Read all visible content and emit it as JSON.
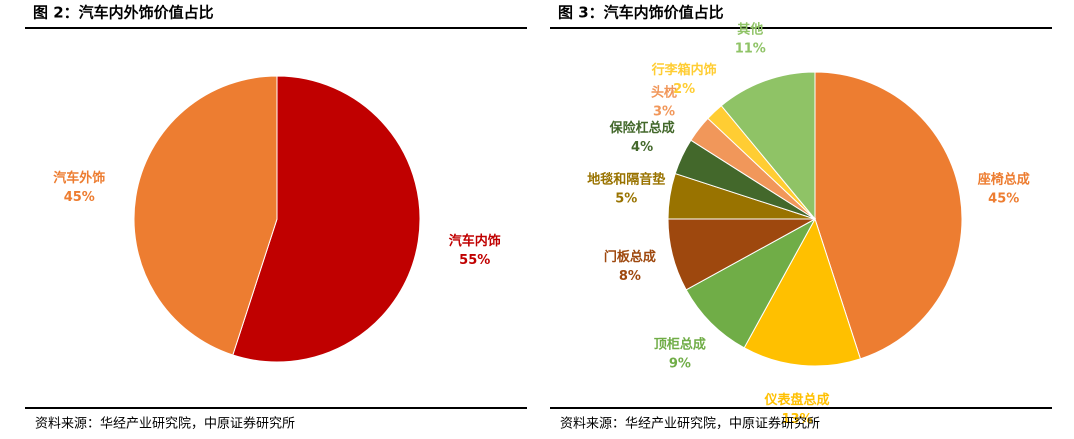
{
  "chart_data": [
    {
      "type": "pie",
      "title": "图 2：汽车内外饰价值占比",
      "categories": [
        "汽车内饰",
        "汽车外饰"
      ],
      "values": [
        55,
        45
      ],
      "value_labels": [
        "55%",
        "45%"
      ],
      "colors": [
        "#c00000",
        "#ed7d31"
      ],
      "source": "资料来源：华经产业研究院，中原证券研究所"
    },
    {
      "type": "pie",
      "title": "图 3：汽车内饰价值占比",
      "categories": [
        "座椅总成",
        "仪表盘总成",
        "顶柜总成",
        "门板总成",
        "地毯和隔音垫",
        "保险杠总成",
        "头枕",
        "行李箱内饰",
        "其他"
      ],
      "values": [
        45,
        13,
        9,
        8,
        5,
        4,
        3,
        2,
        11
      ],
      "value_labels": [
        "45%",
        "13%",
        "9%",
        "8%",
        "5%",
        "4%",
        "3%",
        "2%",
        "11%"
      ],
      "colors": [
        "#ed7d31",
        "#ffc000",
        "#70ad47",
        "#9e480e",
        "#997300",
        "#43682b",
        "#f1975a",
        "#ffcd33",
        "#8fc366"
      ],
      "source": "资料来源：华经产业研究院，中原证券研究所"
    }
  ]
}
